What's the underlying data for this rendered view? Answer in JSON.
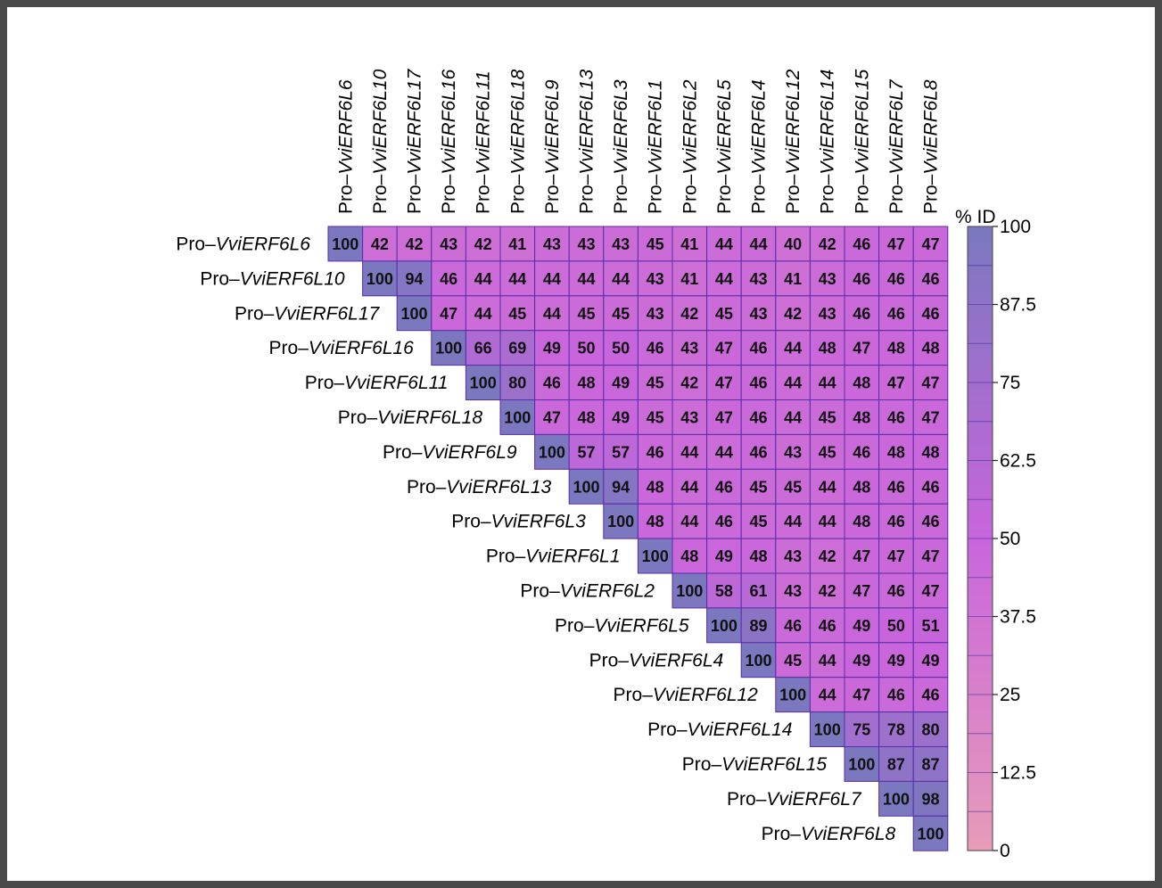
{
  "chart_data": {
    "type": "heatmap",
    "subtype": "upper-triangular pairwise identity matrix",
    "labels": [
      "VviERF6L6",
      "VviERF6L10",
      "VviERF6L17",
      "VviERF6L16",
      "VviERF6L11",
      "VviERF6L18",
      "VviERF6L9",
      "VviERF6L13",
      "VviERF6L3",
      "VviERF6L1",
      "VviERF6L2",
      "VviERF6L5",
      "VviERF6L4",
      "VviERF6L12",
      "VviERF6L14",
      "VviERF6L15",
      "VviERF6L7",
      "VviERF6L8"
    ],
    "label_prefix": "Pro–",
    "matrix": [
      [
        100,
        42,
        42,
        43,
        42,
        41,
        43,
        43,
        43,
        45,
        41,
        44,
        44,
        40,
        42,
        46,
        47,
        47
      ],
      [
        100,
        94,
        46,
        44,
        44,
        44,
        44,
        44,
        43,
        41,
        44,
        43,
        41,
        43,
        46,
        46,
        46
      ],
      [
        100,
        47,
        44,
        45,
        44,
        45,
        45,
        43,
        42,
        45,
        43,
        42,
        43,
        46,
        46,
        46
      ],
      [
        100,
        66,
        69,
        49,
        50,
        50,
        46,
        43,
        47,
        46,
        44,
        48,
        47,
        48,
        48
      ],
      [
        100,
        80,
        46,
        48,
        49,
        45,
        42,
        47,
        46,
        44,
        44,
        48,
        47,
        47
      ],
      [
        100,
        47,
        48,
        49,
        45,
        43,
        47,
        46,
        44,
        45,
        48,
        46,
        47
      ],
      [
        100,
        57,
        57,
        46,
        44,
        44,
        46,
        43,
        45,
        46,
        48,
        48
      ],
      [
        100,
        94,
        48,
        44,
        46,
        45,
        45,
        44,
        48,
        46,
        46
      ],
      [
        100,
        48,
        44,
        46,
        45,
        44,
        44,
        48,
        46,
        46
      ],
      [
        100,
        48,
        49,
        48,
        43,
        42,
        47,
        47,
        47
      ],
      [
        100,
        58,
        61,
        43,
        42,
        47,
        46,
        47
      ],
      [
        100,
        89,
        46,
        46,
        49,
        50,
        51
      ],
      [
        100,
        45,
        44,
        49,
        49,
        49
      ],
      [
        100,
        44,
        47,
        46,
        46
      ],
      [
        100,
        75,
        78,
        80
      ],
      [
        100,
        87,
        87
      ],
      [
        100,
        98
      ],
      [
        100
      ]
    ],
    "colorbar": {
      "title": "% ID",
      "min": 0,
      "max": 100,
      "ticks": [
        "100",
        "87.5",
        "75",
        "62.5",
        "50",
        "37.5",
        "25",
        "12.5",
        "0"
      ],
      "color_low": "#e79cb8",
      "color_mid": "#c865dc",
      "color_high": "#7b78bf"
    },
    "grid": true
  }
}
